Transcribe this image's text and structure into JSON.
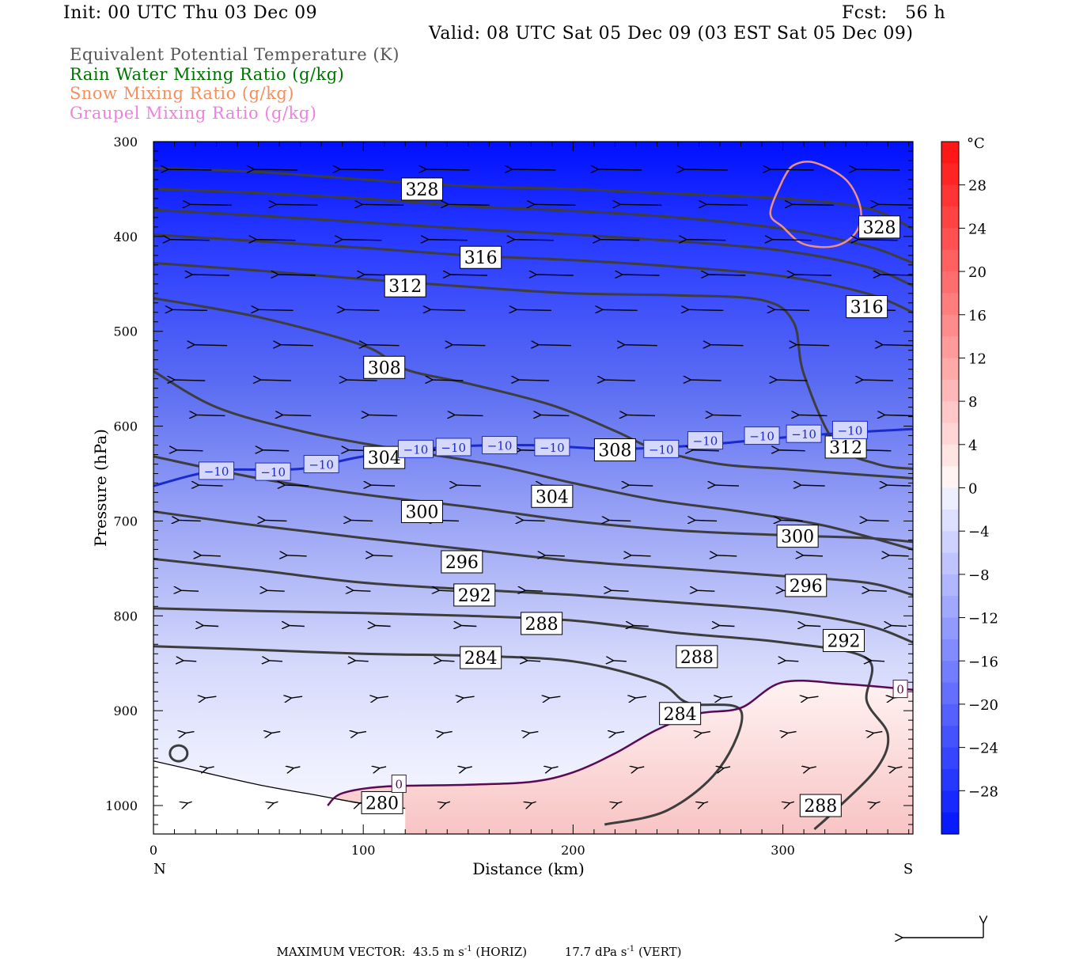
{
  "header": {
    "init": "Init: 00 UTC Thu 03 Dec 09",
    "fcst": "Fcst:   56 h",
    "valid": "Valid: 08 UTC Sat 05 Dec 09 (03 EST Sat 05 Dec 09)"
  },
  "legend": [
    {
      "label": "Equivalent Potential Temperature (K)",
      "color": "#555555"
    },
    {
      "label": "Rain Water Mixing Ratio (g/kg)",
      "color": "#007000"
    },
    {
      "label": "Snow Mixing Ratio (g/kg)",
      "color": "#f09060"
    },
    {
      "label": "Graupel Mixing Ratio (g/kg)",
      "color": "#f080e0"
    }
  ],
  "chart_data": {
    "type": "cross-section",
    "xlabel": "Distance (km)",
    "ylabel": "Pressure (hPa)",
    "xlim": [
      0,
      362
    ],
    "ylim": [
      1030,
      300
    ],
    "x_ticks": [
      0,
      100,
      200,
      300
    ],
    "x_tick_labels": [
      "0",
      "100",
      "200",
      "300"
    ],
    "y_ticks": [
      300,
      400,
      500,
      600,
      700,
      800,
      900,
      1000
    ],
    "y_tick_labels": [
      "300",
      "400",
      "500",
      "600",
      "700",
      "800",
      "900",
      "1000"
    ],
    "x_end_labels": {
      "left": "N",
      "right": "S"
    },
    "colorbar": {
      "unit": "°C",
      "ticks": [
        28,
        24,
        20,
        16,
        12,
        8,
        4,
        0,
        -4,
        -8,
        -12,
        -16,
        -20,
        -24,
        -28
      ],
      "tick_labels": [
        "28",
        "24",
        "20",
        "16",
        "12",
        "8",
        "4",
        "0",
        "−4",
        "−8",
        "−12",
        "−16",
        "−20",
        "−24",
        "−28"
      ],
      "range": [
        -32,
        32
      ]
    },
    "theta_e_contours": [
      {
        "value": 280,
        "points": [
          [
            0,
            953
          ],
          [
            20,
            963
          ],
          [
            50,
            978
          ],
          [
            80,
            990
          ],
          [
            100,
            998
          ],
          [
            120,
            1003
          ]
        ]
      },
      {
        "value": 284,
        "points": [
          [
            0,
            832
          ],
          [
            40,
            835
          ],
          [
            100,
            840
          ],
          [
            150,
            842
          ],
          [
            200,
            848
          ],
          [
            240,
            870
          ],
          [
            255,
            892
          ],
          [
            280,
            900
          ],
          [
            270,
            960
          ],
          [
            245,
            1005
          ],
          [
            215,
            1020
          ]
        ]
      },
      {
        "value": 288,
        "points": [
          [
            0,
            792
          ],
          [
            50,
            795
          ],
          [
            100,
            797
          ],
          [
            150,
            800
          ],
          [
            200,
            805
          ],
          [
            250,
            818
          ],
          [
            300,
            828
          ],
          [
            340,
            845
          ],
          [
            340,
            890
          ],
          [
            350,
            925
          ],
          [
            345,
            960
          ],
          [
            325,
            1005
          ],
          [
            315,
            1025
          ]
        ]
      },
      {
        "value": 292,
        "points": [
          [
            0,
            740
          ],
          [
            50,
            752
          ],
          [
            100,
            765
          ],
          [
            150,
            772
          ],
          [
            200,
            778
          ],
          [
            250,
            786
          ],
          [
            300,
            795
          ],
          [
            340,
            810
          ],
          [
            362,
            828
          ]
        ]
      },
      {
        "value": 296,
        "points": [
          [
            0,
            690
          ],
          [
            50,
            705
          ],
          [
            100,
            718
          ],
          [
            150,
            730
          ],
          [
            200,
            742
          ],
          [
            250,
            750
          ],
          [
            300,
            758
          ],
          [
            340,
            765
          ],
          [
            362,
            778
          ]
        ]
      },
      {
        "value": 300,
        "points": [
          [
            0,
            632
          ],
          [
            50,
            655
          ],
          [
            100,
            672
          ],
          [
            150,
            685
          ],
          [
            200,
            700
          ],
          [
            250,
            710
          ],
          [
            300,
            715
          ],
          [
            340,
            718
          ],
          [
            362,
            722
          ]
        ]
      },
      {
        "value": 304,
        "points": [
          [
            0,
            542
          ],
          [
            30,
            580
          ],
          [
            70,
            605
          ],
          [
            110,
            622
          ],
          [
            160,
            640
          ],
          [
            200,
            660
          ],
          [
            240,
            678
          ],
          [
            280,
            690
          ],
          [
            320,
            705
          ],
          [
            362,
            730
          ]
        ]
      },
      {
        "value": 308,
        "points": [
          [
            0,
            465
          ],
          [
            50,
            485
          ],
          [
            100,
            515
          ],
          [
            120,
            540
          ],
          [
            150,
            555
          ],
          [
            190,
            578
          ],
          [
            220,
            605
          ],
          [
            240,
            625
          ],
          [
            270,
            640
          ],
          [
            300,
            645
          ],
          [
            330,
            650
          ],
          [
            362,
            655
          ]
        ]
      },
      {
        "value": 312,
        "points": [
          [
            0,
            428
          ],
          [
            50,
            436
          ],
          [
            100,
            445
          ],
          [
            150,
            453
          ],
          [
            200,
            460
          ],
          [
            250,
            462
          ],
          [
            290,
            467
          ],
          [
            305,
            490
          ],
          [
            310,
            545
          ],
          [
            325,
            618
          ],
          [
            345,
            640
          ],
          [
            362,
            645
          ]
        ]
      },
      {
        "value": 316,
        "points": [
          [
            0,
            398
          ],
          [
            50,
            405
          ],
          [
            100,
            412
          ],
          [
            150,
            420
          ],
          [
            200,
            425
          ],
          [
            250,
            432
          ],
          [
            300,
            442
          ],
          [
            340,
            460
          ],
          [
            362,
            480
          ]
        ]
      },
      {
        "value": 320,
        "points": [
          [
            0,
            372
          ],
          [
            50,
            378
          ],
          [
            100,
            385
          ],
          [
            150,
            392
          ],
          [
            200,
            398
          ],
          [
            250,
            405
          ],
          [
            300,
            415
          ],
          [
            340,
            432
          ],
          [
            362,
            452
          ]
        ]
      },
      {
        "value": 324,
        "points": [
          [
            0,
            350
          ],
          [
            50,
            354
          ],
          [
            100,
            360
          ],
          [
            150,
            368
          ],
          [
            200,
            373
          ],
          [
            250,
            380
          ],
          [
            300,
            392
          ],
          [
            340,
            410
          ],
          [
            362,
            428
          ]
        ]
      },
      {
        "value": 328,
        "points": [
          [
            0,
            328
          ],
          [
            50,
            332
          ],
          [
            100,
            340
          ],
          [
            150,
            347
          ],
          [
            200,
            350
          ],
          [
            250,
            355
          ],
          [
            300,
            360
          ],
          [
            340,
            370
          ],
          [
            362,
            392
          ]
        ]
      }
    ],
    "theta_e_labels": [
      {
        "text": "328",
        "x": 128,
        "p": 350
      },
      {
        "text": "328",
        "x": 346,
        "p": 390
      },
      {
        "text": "316",
        "x": 156,
        "p": 422
      },
      {
        "text": "316",
        "x": 340,
        "p": 474
      },
      {
        "text": "312",
        "x": 120,
        "p": 452
      },
      {
        "text": "312",
        "x": 330,
        "p": 622
      },
      {
        "text": "308",
        "x": 110,
        "p": 538
      },
      {
        "text": "308",
        "x": 220,
        "p": 625
      },
      {
        "text": "304",
        "x": 110,
        "p": 633
      },
      {
        "text": "304",
        "x": 190,
        "p": 674
      },
      {
        "text": "300",
        "x": 128,
        "p": 690
      },
      {
        "text": "300",
        "x": 307,
        "p": 716
      },
      {
        "text": "296",
        "x": 147,
        "p": 743
      },
      {
        "text": "296",
        "x": 311,
        "p": 768
      },
      {
        "text": "292",
        "x": 153,
        "p": 778
      },
      {
        "text": "292",
        "x": 329,
        "p": 826
      },
      {
        "text": "288",
        "x": 185,
        "p": 808
      },
      {
        "text": "288",
        "x": 259,
        "p": 843
      },
      {
        "text": "288",
        "x": 318,
        "p": 1000
      },
      {
        "text": "284",
        "x": 156,
        "p": 844
      },
      {
        "text": "284",
        "x": 251,
        "p": 903
      },
      {
        "text": "280",
        "x": 109,
        "p": 997
      }
    ],
    "isotherm_minus10": {
      "value": -10,
      "points": [
        [
          0,
          663
        ],
        [
          30,
          647
        ],
        [
          70,
          645
        ],
        [
          100,
          632
        ],
        [
          140,
          622
        ],
        [
          180,
          620
        ],
        [
          220,
          624
        ],
        [
          260,
          620
        ],
        [
          300,
          612
        ],
        [
          330,
          607
        ],
        [
          362,
          603
        ]
      ],
      "labels": [
        {
          "text": "−10",
          "x": 30,
          "p": 647
        },
        {
          "text": "−10",
          "x": 57,
          "p": 648
        },
        {
          "text": "−10",
          "x": 80,
          "p": 640
        },
        {
          "text": "−10",
          "x": 125,
          "p": 624
        },
        {
          "text": "−10",
          "x": 143,
          "p": 622
        },
        {
          "text": "−10",
          "x": 165,
          "p": 620
        },
        {
          "text": "−10",
          "x": 190,
          "p": 622
        },
        {
          "text": "−10",
          "x": 242,
          "p": 624
        },
        {
          "text": "−10",
          "x": 263,
          "p": 615
        },
        {
          "text": "−10",
          "x": 290,
          "p": 610
        },
        {
          "text": "−10",
          "x": 310,
          "p": 608
        },
        {
          "text": "−10",
          "x": 332,
          "p": 604
        }
      ]
    },
    "isotherm_zero": {
      "value": 0,
      "points": [
        [
          83,
          1000
        ],
        [
          90,
          987
        ],
        [
          110,
          980
        ],
        [
          150,
          978
        ],
        [
          180,
          975
        ],
        [
          200,
          965
        ],
        [
          220,
          945
        ],
        [
          240,
          920
        ],
        [
          260,
          903
        ],
        [
          280,
          897
        ],
        [
          300,
          870
        ],
        [
          330,
          872
        ],
        [
          362,
          878
        ]
      ],
      "labels": [
        {
          "text": "0",
          "x": 117,
          "p": 977
        },
        {
          "text": "0",
          "x": 356,
          "p": 877
        }
      ]
    },
    "snow_contour": {
      "value": 0.01,
      "points": [
        [
          300,
          340
        ],
        [
          305,
          325
        ],
        [
          315,
          322
        ],
        [
          330,
          340
        ],
        [
          337,
          370
        ],
        [
          335,
          395
        ],
        [
          325,
          410
        ],
        [
          310,
          408
        ],
        [
          300,
          390
        ],
        [
          294,
          375
        ],
        [
          300,
          340
        ]
      ]
    },
    "small_theta_e_loop": {
      "center": [
        12,
        945
      ],
      "radius_km": 4
    },
    "max_vector": {
      "horiz": "43.5",
      "horiz_unit": "m s",
      "horiz_tag": "(HORIZ)",
      "vert": "17.7",
      "vert_unit": "dPa s",
      "vert_tag": "(VERT)",
      "label": "MAXIMUM VECTOR:",
      "exp": "-1"
    }
  }
}
